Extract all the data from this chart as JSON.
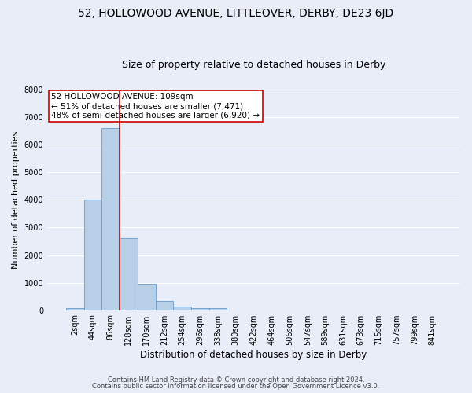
{
  "title": "52, HOLLOWOOD AVENUE, LITTLEOVER, DERBY, DE23 6JD",
  "subtitle": "Size of property relative to detached houses in Derby",
  "xlabel": "Distribution of detached houses by size in Derby",
  "ylabel": "Number of detached properties",
  "footnote1": "Contains HM Land Registry data © Crown copyright and database right 2024.",
  "footnote2": "Contains public sector information licensed under the Open Government Licence v3.0.",
  "bar_labels": [
    "2sqm",
    "44sqm",
    "86sqm",
    "128sqm",
    "170sqm",
    "212sqm",
    "254sqm",
    "296sqm",
    "338sqm",
    "380sqm",
    "422sqm",
    "464sqm",
    "506sqm",
    "547sqm",
    "589sqm",
    "631sqm",
    "673sqm",
    "715sqm",
    "757sqm",
    "799sqm",
    "841sqm"
  ],
  "bar_values": [
    60,
    4000,
    6600,
    2600,
    960,
    320,
    120,
    85,
    65,
    0,
    0,
    0,
    0,
    0,
    0,
    0,
    0,
    0,
    0,
    0,
    0
  ],
  "bar_color": "#b8cfe8",
  "bar_edge_color": "#6699cc",
  "vline_color": "#cc0000",
  "vline_index": 2.5,
  "annotation_text": "52 HOLLOWOOD AVENUE: 109sqm\n← 51% of detached houses are smaller (7,471)\n48% of semi-detached houses are larger (6,920) →",
  "annotation_box_color": "#ffffff",
  "annotation_box_edge": "#cc0000",
  "ylim": [
    0,
    8000
  ],
  "yticks": [
    0,
    1000,
    2000,
    3000,
    4000,
    5000,
    6000,
    7000,
    8000
  ],
  "background_color": "#e8edf8",
  "axes_background": "#e8edf8",
  "grid_color": "#ffffff",
  "title_fontsize": 10,
  "subtitle_fontsize": 9,
  "tick_fontsize": 7,
  "ylabel_fontsize": 8,
  "xlabel_fontsize": 8.5,
  "annotation_fontsize": 7.5,
  "footnote_fontsize": 6
}
